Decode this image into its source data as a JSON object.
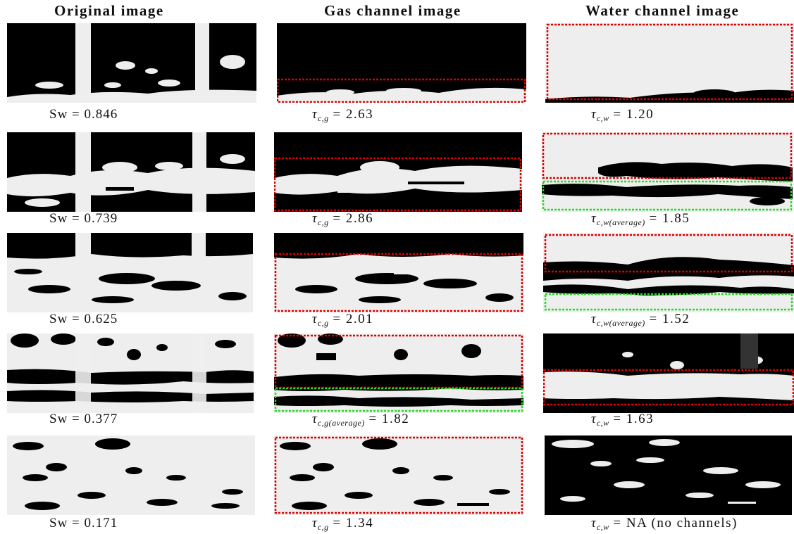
{
  "headers": {
    "original": "Original image",
    "gas": "Gas channel image",
    "water": "Water channel image"
  },
  "rows": [
    {
      "sw": "Sw = 0.846",
      "gas_sub": "c,g",
      "gas_value": "= 2.63",
      "water_sub": "c,w",
      "water_value": "= 1.20"
    },
    {
      "sw": "Sw = 0.739",
      "gas_sub": "c,g",
      "gas_value": "= 2.86",
      "water_sub": "c,w(average)",
      "water_value": "= 1.85"
    },
    {
      "sw": "Sw = 0.625",
      "gas_sub": "c,g",
      "gas_value": "= 2.01",
      "water_sub": "c,w(average)",
      "water_value": "= 1.52"
    },
    {
      "sw": "Sw = 0.377",
      "gas_sub": "c,g(average)",
      "gas_value": "= 1.82",
      "water_sub": "c,w",
      "water_value": "= 1.63"
    },
    {
      "sw": "Sw = 0.171",
      "gas_sub": "c,g",
      "gas_value": "= 1.34",
      "water_sub": "c,w",
      "water_value": "= NA (no channels)"
    }
  ],
  "tau_symbol": "τ",
  "colors": {
    "phase_dark": "#000000",
    "phase_light": "#f0f0f0",
    "box_red": "#dd0000",
    "box_green": "#22dd22"
  },
  "icons": {
    "water_phase": "light-blob",
    "gas_phase": "dark-blob"
  }
}
